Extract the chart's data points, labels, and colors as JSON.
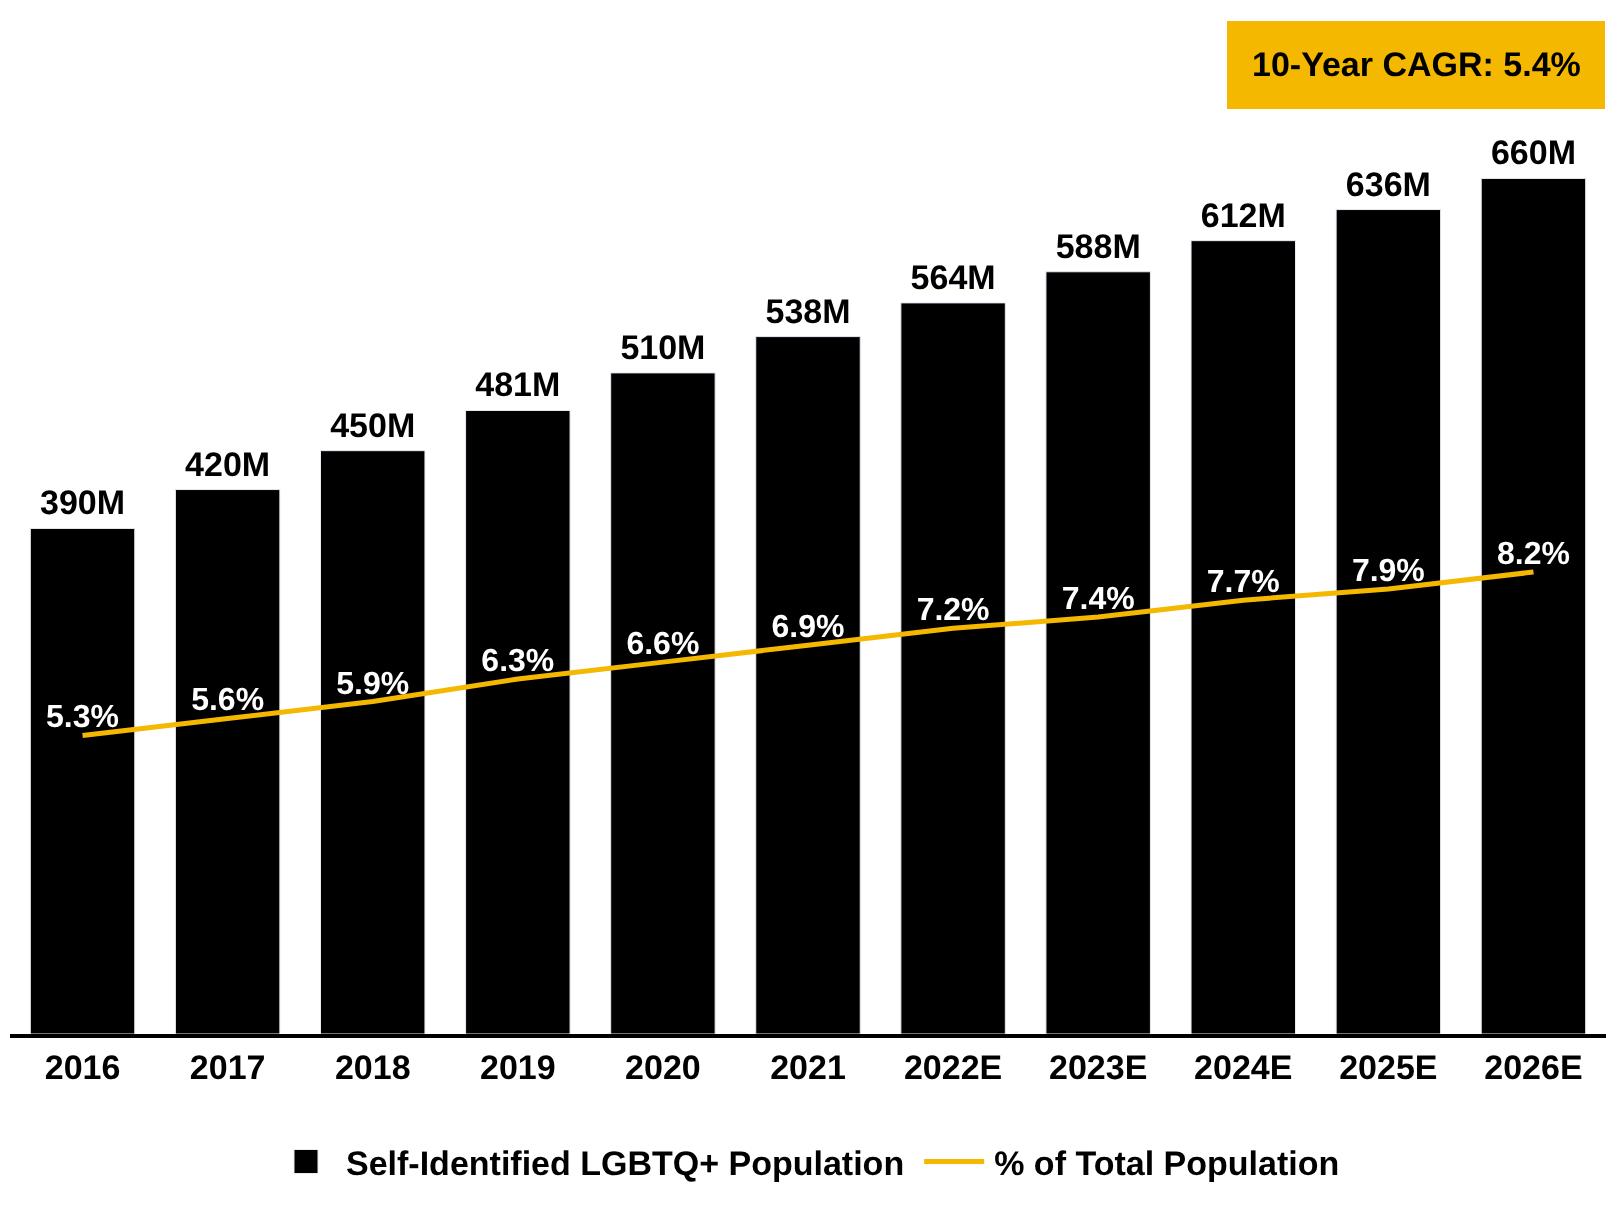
{
  "chart_data": {
    "type": "bar",
    "categories": [
      "2016",
      "2017",
      "2018",
      "2019",
      "2020",
      "2021",
      "2022E",
      "2023E",
      "2024E",
      "2025E",
      "2026E"
    ],
    "series": [
      {
        "name": "Self-Identified LGBTQ+ Population",
        "color": "#000000",
        "values": [
          390,
          420,
          450,
          481,
          510,
          538,
          564,
          588,
          612,
          636,
          660
        ],
        "value_labels": [
          "390M",
          "420M",
          "450M",
          "481M",
          "510M",
          "538M",
          "564M",
          "588M",
          "612M",
          "636M",
          "660M"
        ]
      },
      {
        "name": "% of Total Population",
        "type": "line",
        "axis": "y2",
        "color": "#f5b800",
        "values": [
          5.3,
          5.6,
          5.9,
          6.3,
          6.6,
          6.9,
          7.2,
          7.4,
          7.7,
          7.9,
          8.2
        ],
        "value_labels": [
          "5.3%",
          "5.6%",
          "5.9%",
          "6.3%",
          "6.6%",
          "6.9%",
          "7.2%",
          "7.4%",
          "7.7%",
          "7.9%",
          "8.2%"
        ]
      }
    ],
    "annotations": [
      "10-Year CAGR: 5.4%"
    ],
    "legend": "bottom",
    "marker": "none",
    "line_style": "solid"
  }
}
